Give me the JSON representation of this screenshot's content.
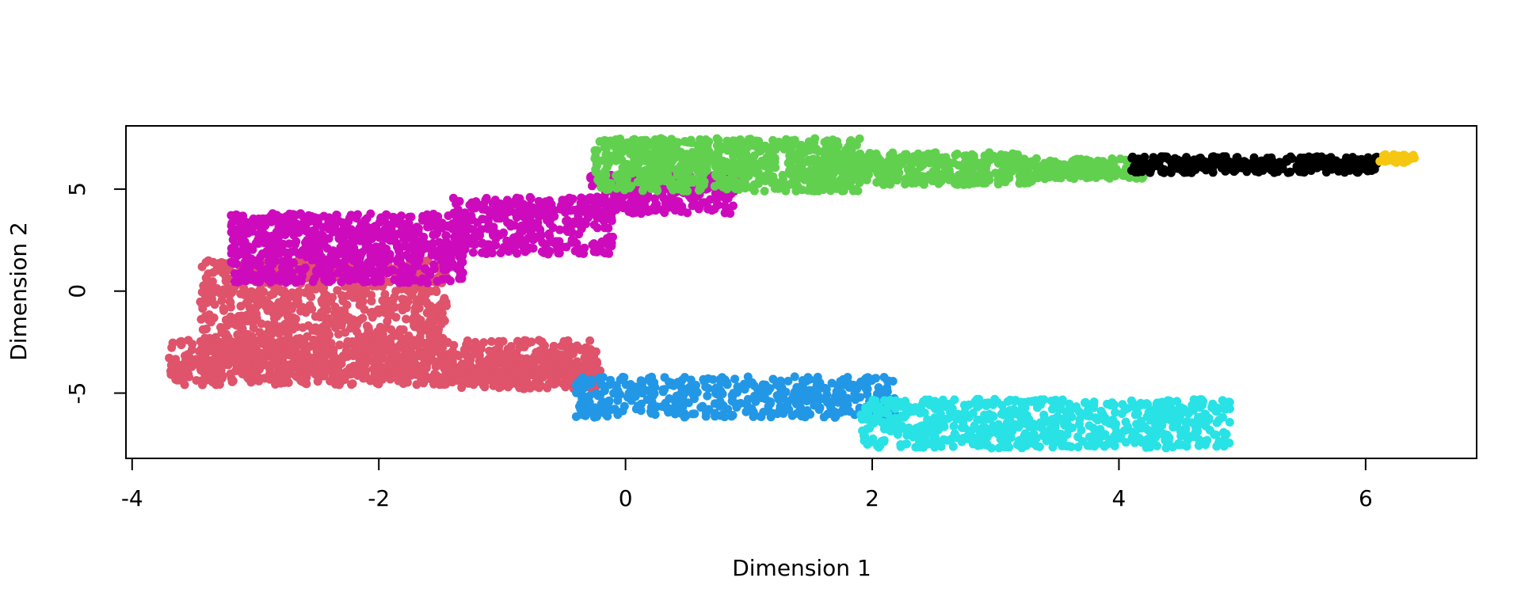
{
  "chart_data": {
    "type": "scatter",
    "title": "",
    "xlabel": "Dimension 1",
    "ylabel": "Dimension 2",
    "xlim": [
      -4.05,
      6.9
    ],
    "ylim": [
      -8.2,
      8.1
    ],
    "x_ticks": [
      -4,
      -2,
      0,
      2,
      4,
      6
    ],
    "y_ticks": [
      -5,
      0,
      5
    ],
    "legend": "none",
    "grid": false,
    "series": [
      {
        "color": "#df536b",
        "description_shape": "dense cluster",
        "regions": [
          {
            "x": [
              -3.45,
              -1.45
            ],
            "y": [
              -4.3,
              1.5
            ],
            "count": 900
          },
          {
            "x": [
              -3.7,
              -0.2
            ],
            "y": [
              -4.6,
              -2.4
            ],
            "count": 650
          },
          {
            "x": [
              -1.5,
              -0.2
            ],
            "y": [
              -4.8,
              -3.0
            ],
            "count": 250
          }
        ]
      },
      {
        "color": "#cd0bbc",
        "regions": [
          {
            "x": [
              -3.2,
              -1.3
            ],
            "y": [
              0.4,
              3.8
            ],
            "count": 700
          },
          {
            "x": [
              -1.4,
              -0.1
            ],
            "y": [
              1.8,
              4.6
            ],
            "count": 350
          },
          {
            "x": [
              -0.3,
              0.9
            ],
            "y": [
              3.8,
              5.8
            ],
            "count": 220
          }
        ]
      },
      {
        "color": "#61d04f",
        "regions": [
          {
            "x": [
              -0.25,
              1.9
            ],
            "y": [
              4.9,
              7.5
            ],
            "count": 700
          },
          {
            "x": [
              1.6,
              3.3
            ],
            "y": [
              5.2,
              6.8
            ],
            "count": 350
          },
          {
            "x": [
              3.1,
              4.2
            ],
            "y": [
              5.5,
              6.5
            ],
            "count": 180
          }
        ]
      },
      {
        "color": "#000000",
        "regions": [
          {
            "x": [
              4.1,
              6.1
            ],
            "y": [
              5.8,
              6.6
            ],
            "count": 300
          }
        ]
      },
      {
        "color": "#f5c710",
        "regions": [
          {
            "x": [
              6.1,
              6.4
            ],
            "y": [
              6.3,
              6.7
            ],
            "count": 40
          }
        ]
      },
      {
        "color": "#2297e6",
        "regions": [
          {
            "x": [
              -0.4,
              2.2
            ],
            "y": [
              -6.2,
              -4.2
            ],
            "count": 450
          }
        ]
      },
      {
        "color": "#28e2e5",
        "regions": [
          {
            "x": [
              1.9,
              4.9
            ],
            "y": [
              -7.7,
              -5.3
            ],
            "count": 700
          }
        ]
      }
    ]
  }
}
